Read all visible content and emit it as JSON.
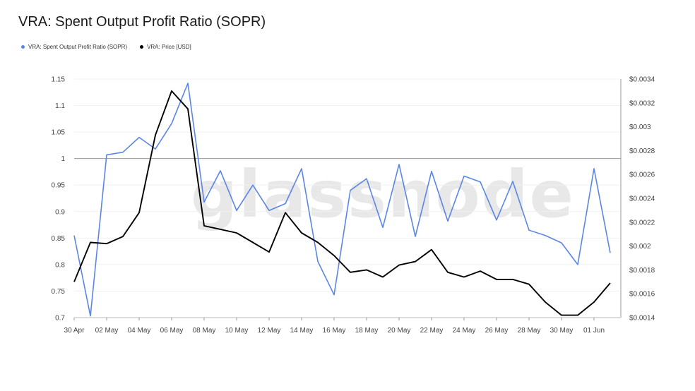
{
  "title": "VRA: Spent Output Profit Ratio (SOPR)",
  "watermark": "glassnode",
  "legend": [
    {
      "label": "VRA: Spent Output Profit Ratio (SOPR)",
      "color": "#5b86e5"
    },
    {
      "label": "VRA: Price [USD]",
      "color": "#000000"
    }
  ],
  "chart_data": {
    "type": "line",
    "x": [
      "30 Apr",
      "01 May",
      "02 May",
      "03 May",
      "04 May",
      "05 May",
      "06 May",
      "07 May",
      "08 May",
      "09 May",
      "10 May",
      "11 May",
      "12 May",
      "13 May",
      "14 May",
      "15 May",
      "16 May",
      "17 May",
      "18 May",
      "19 May",
      "20 May",
      "21 May",
      "22 May",
      "23 May",
      "24 May",
      "25 May",
      "26 May",
      "27 May",
      "28 May",
      "29 May",
      "30 May",
      "31 May",
      "01 Jun",
      "02 Jun"
    ],
    "x_tick_labels": [
      "30 Apr",
      "02 May",
      "04 May",
      "06 May",
      "08 May",
      "10 May",
      "12 May",
      "14 May",
      "16 May",
      "18 May",
      "20 May",
      "22 May",
      "24 May",
      "26 May",
      "28 May",
      "30 May",
      "01 Jun"
    ],
    "y_left": {
      "min": 0.7,
      "max": 1.15,
      "ticks": [
        "0.7",
        "0.75",
        "0.8",
        "0.85",
        "0.9",
        "0.95",
        "1",
        "1.05",
        "1.1",
        "1.15"
      ]
    },
    "y_right": {
      "min": 0.0014,
      "max": 0.0034,
      "ticks": [
        "$0.0014",
        "$0.0016",
        "$0.0018",
        "$0.002",
        "$0.0022",
        "$0.0024",
        "$0.0026",
        "$0.0028",
        "$0.003",
        "$0.0032",
        "$0.0034"
      ]
    },
    "reference_line": 1,
    "series": [
      {
        "name": "VRA: Spent Output Profit Ratio (SOPR)",
        "axis": "left",
        "color": "#5b86e5",
        "values": [
          0.855,
          0.703,
          1.007,
          1.012,
          1.04,
          1.018,
          1.066,
          1.142,
          0.918,
          0.977,
          0.902,
          0.95,
          0.902,
          0.915,
          0.981,
          0.806,
          0.743,
          0.94,
          0.962,
          0.87,
          0.989,
          0.853,
          0.976,
          0.882,
          0.967,
          0.956,
          0.884,
          0.957,
          0.865,
          0.855,
          0.841,
          0.8,
          0.981,
          0.822
        ]
      },
      {
        "name": "VRA: Price [USD]",
        "axis": "right",
        "color": "#000000",
        "values": [
          0.0017,
          0.00203,
          0.00202,
          0.00208,
          0.00228,
          0.00293,
          0.0033,
          0.00315,
          0.00217,
          0.00214,
          0.00211,
          0.00203,
          0.00195,
          0.00228,
          0.00211,
          0.00203,
          0.00192,
          0.00178,
          0.0018,
          0.00174,
          0.00184,
          0.00187,
          0.00197,
          0.00178,
          0.00174,
          0.00179,
          0.00172,
          0.00172,
          0.00168,
          0.00153,
          0.00142,
          0.00142,
          0.00153,
          0.00169
        ]
      }
    ],
    "grid": true
  }
}
